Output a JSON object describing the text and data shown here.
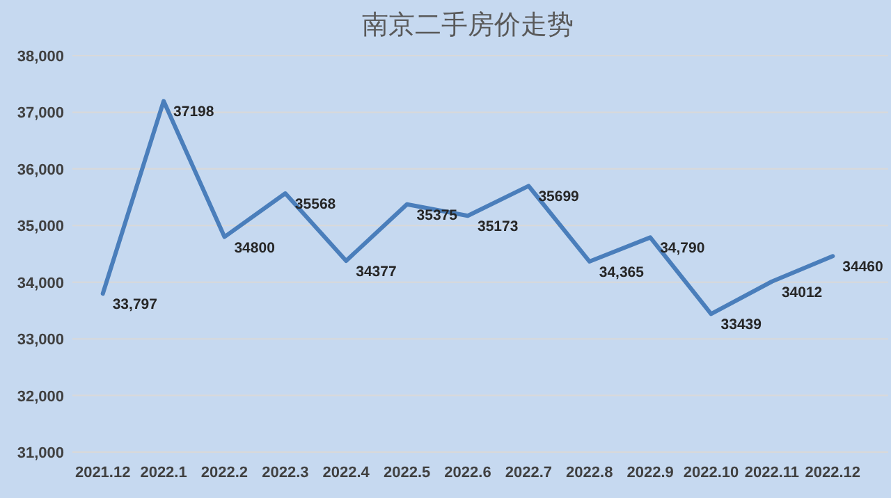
{
  "chart_data": {
    "type": "line",
    "title": "南京二手房价走势",
    "categories": [
      "2021.12",
      "2022.1",
      "2022.2",
      "2022.3",
      "2022.4",
      "2022.5",
      "2022.6",
      "2022.7",
      "2022.8",
      "2022.9",
      "2022.10",
      "2022.11",
      "2022.12"
    ],
    "series": [
      {
        "color": "#4a7ebb",
        "values": [
          33797,
          37198,
          34800,
          35568,
          34377,
          35375,
          35173,
          35699,
          34365,
          34790,
          33439,
          34012,
          34460
        ],
        "value_labels": [
          "33,797",
          "37198",
          "34800",
          "35568",
          "34377",
          "35375",
          "35173",
          "35699",
          "34,365",
          "34,790",
          "33439",
          "34012",
          "34460"
        ]
      }
    ],
    "ylim": [
      31000,
      38000
    ],
    "yticks": [
      {
        "value": 31000,
        "label": "31,000"
      },
      {
        "value": 32000,
        "label": "32,000"
      },
      {
        "value": 33000,
        "label": "33,000"
      },
      {
        "value": 34000,
        "label": "34,000"
      },
      {
        "value": 35000,
        "label": "35,000"
      },
      {
        "value": 36000,
        "label": "36,000"
      },
      {
        "value": 37000,
        "label": "37,000"
      },
      {
        "value": 38000,
        "label": "38,000"
      }
    ],
    "grid": "y",
    "marker": "none",
    "line_style": "solid"
  }
}
